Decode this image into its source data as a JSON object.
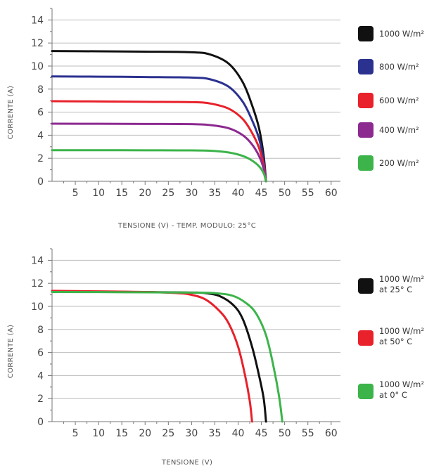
{
  "colors": {
    "grid": "#bdbdbd",
    "axis": "#777777",
    "black": "#111111",
    "navy": "#2b318f",
    "red": "#e8212b",
    "purple": "#8c2a90",
    "green": "#3cb44a"
  },
  "chart_data": [
    {
      "type": "line",
      "title": "",
      "xlabel": "TENSIONE (V) - TEMP. MODULO: 25°C",
      "ylabel": "CORRENTE (A)",
      "xlim": [
        0,
        62
      ],
      "ylim": [
        0,
        15
      ],
      "xticks": [
        "5",
        "10",
        "15",
        "20",
        "25",
        "30",
        "35",
        "40",
        "45",
        "50",
        "55",
        "60"
      ],
      "yticks": [
        "0",
        "2",
        "4",
        "6",
        "8",
        "10",
        "12",
        "14"
      ],
      "grid": "horizontal",
      "legend_position": "right",
      "series": [
        {
          "name": "1000 W/m²",
          "color": "#111111",
          "x": [
            0,
            10,
            20,
            30,
            34,
            38,
            41,
            43,
            44.5,
            45.5,
            46
          ],
          "y": [
            11.3,
            11.28,
            11.25,
            11.2,
            11.0,
            10.2,
            8.6,
            6.6,
            4.6,
            2.2,
            0
          ]
        },
        {
          "name": "800 W/m²",
          "color": "#2b318f",
          "x": [
            0,
            10,
            20,
            30,
            34,
            38,
            41,
            43,
            44.5,
            45.5,
            46
          ],
          "y": [
            9.1,
            9.08,
            9.05,
            9.0,
            8.85,
            8.2,
            6.9,
            5.3,
            3.7,
            1.8,
            0
          ]
        },
        {
          "name": "600 W/m²",
          "color": "#e8212b",
          "x": [
            0,
            10,
            20,
            30,
            34,
            38,
            41,
            43,
            44.5,
            45.5,
            46
          ],
          "y": [
            6.95,
            6.93,
            6.9,
            6.87,
            6.75,
            6.3,
            5.4,
            4.2,
            2.9,
            1.4,
            0
          ]
        },
        {
          "name": "400 W/m²",
          "color": "#8c2a90",
          "x": [
            0,
            10,
            20,
            30,
            34,
            38,
            41,
            43,
            44.5,
            45.5,
            46
          ],
          "y": [
            5.0,
            4.99,
            4.98,
            4.96,
            4.88,
            4.6,
            4.0,
            3.2,
            2.2,
            1.1,
            0
          ]
        },
        {
          "name": "200 W/m²",
          "color": "#3cb44a",
          "x": [
            0,
            10,
            20,
            30,
            34,
            38,
            41,
            43,
            44.5,
            45.5,
            46
          ],
          "y": [
            2.7,
            2.7,
            2.69,
            2.68,
            2.65,
            2.5,
            2.2,
            1.8,
            1.3,
            0.7,
            0
          ]
        }
      ]
    },
    {
      "type": "line",
      "title": "",
      "xlabel": "TENSIONE (V)",
      "ylabel": "CORRENTE (A)",
      "xlim": [
        0,
        62
      ],
      "ylim": [
        0,
        15
      ],
      "xticks": [
        "5",
        "10",
        "15",
        "20",
        "25",
        "30",
        "35",
        "40",
        "45",
        "50",
        "55",
        "60"
      ],
      "yticks": [
        "0",
        "2",
        "4",
        "6",
        "8",
        "10",
        "12",
        "14"
      ],
      "grid": "horizontal",
      "legend_position": "right",
      "series": [
        {
          "name": "1000 W/m² at 25° C",
          "color": "#111111",
          "x": [
            0,
            10,
            20,
            30,
            33,
            36,
            39,
            41,
            43,
            44.5,
            45.5,
            46
          ],
          "y": [
            11.3,
            11.27,
            11.24,
            11.2,
            11.15,
            10.9,
            10.1,
            8.9,
            6.5,
            4.0,
            2.0,
            0
          ]
        },
        {
          "name": "1000 W/m² at 50° C",
          "color": "#e8212b",
          "x": [
            0,
            10,
            20,
            27,
            30,
            33,
            36,
            38,
            40,
            41.5,
            42.5,
            43
          ],
          "y": [
            11.35,
            11.3,
            11.25,
            11.15,
            11.0,
            10.6,
            9.6,
            8.5,
            6.5,
            4.0,
            1.8,
            0
          ]
        },
        {
          "name": "1000 W/m² at 0° C",
          "color": "#3cb44a",
          "x": [
            0,
            10,
            20,
            30,
            35,
            39,
            42,
            44,
            46,
            47.5,
            48.8,
            49.5
          ],
          "y": [
            11.25,
            11.24,
            11.22,
            11.2,
            11.15,
            10.9,
            10.2,
            9.3,
            7.5,
            5.0,
            2.2,
            0
          ]
        }
      ]
    }
  ],
  "legends": [
    [
      {
        "text": "1000 W/m²"
      },
      {
        "text": "800 W/m²"
      },
      {
        "text": "600 W/m²"
      },
      {
        "text": "400 W/m²"
      },
      {
        "text": "200 W/m²"
      }
    ],
    [
      {
        "line1": "1000 W/m²",
        "line2": "at 25° C"
      },
      {
        "line1": "1000 W/m²",
        "line2": "at 50° C"
      },
      {
        "line1": "1000 W/m²",
        "line2": "at 0° C"
      }
    ]
  ]
}
